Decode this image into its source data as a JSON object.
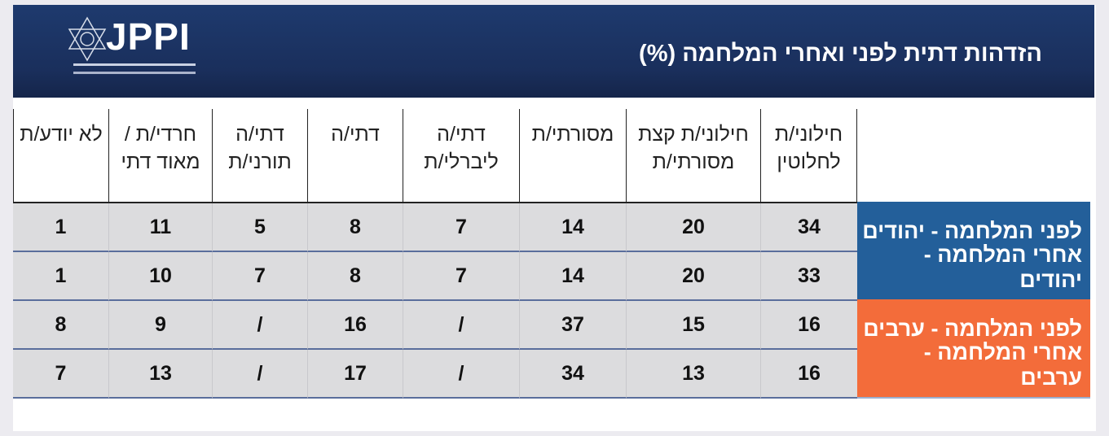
{
  "header": {
    "title": "הזדהות דתית לפני ואחרי המלחמה (%)",
    "logo_text": "JPPI"
  },
  "colors": {
    "jews": "#235f9a",
    "arabs": "#f36c3a",
    "banner": "#1c335f",
    "cell_bg": "#dcdcde"
  },
  "table": {
    "columns": [
      "חילוני/ת לחלוטין",
      "חילוני/ת קצת מסורתי/ת",
      "מסורתי/ת",
      "דתי/ה ליברלי/ת",
      "דתי/ה",
      "דתי/ה תורני/ת",
      "חרדי/ת / מאוד דתי",
      "לא יודע/ת"
    ],
    "rows": [
      {
        "label": "לפני המלחמה - יהודים",
        "group": "jews",
        "values": [
          "34",
          "20",
          "14",
          "7",
          "8",
          "5",
          "11",
          "1"
        ]
      },
      {
        "label": "אחרי המלחמה - יהודים",
        "group": "jews",
        "values": [
          "33",
          "20",
          "14",
          "7",
          "8",
          "7",
          "10",
          "1"
        ]
      },
      {
        "label": "לפני המלחמה - ערבים",
        "group": "arabs",
        "values": [
          "16",
          "15",
          "37",
          "/",
          "16",
          "/",
          "9",
          "8"
        ]
      },
      {
        "label": "אחרי המלחמה - ערבים",
        "group": "arabs",
        "values": [
          "16",
          "13",
          "34",
          "/",
          "17",
          "/",
          "13",
          "7"
        ]
      }
    ]
  }
}
